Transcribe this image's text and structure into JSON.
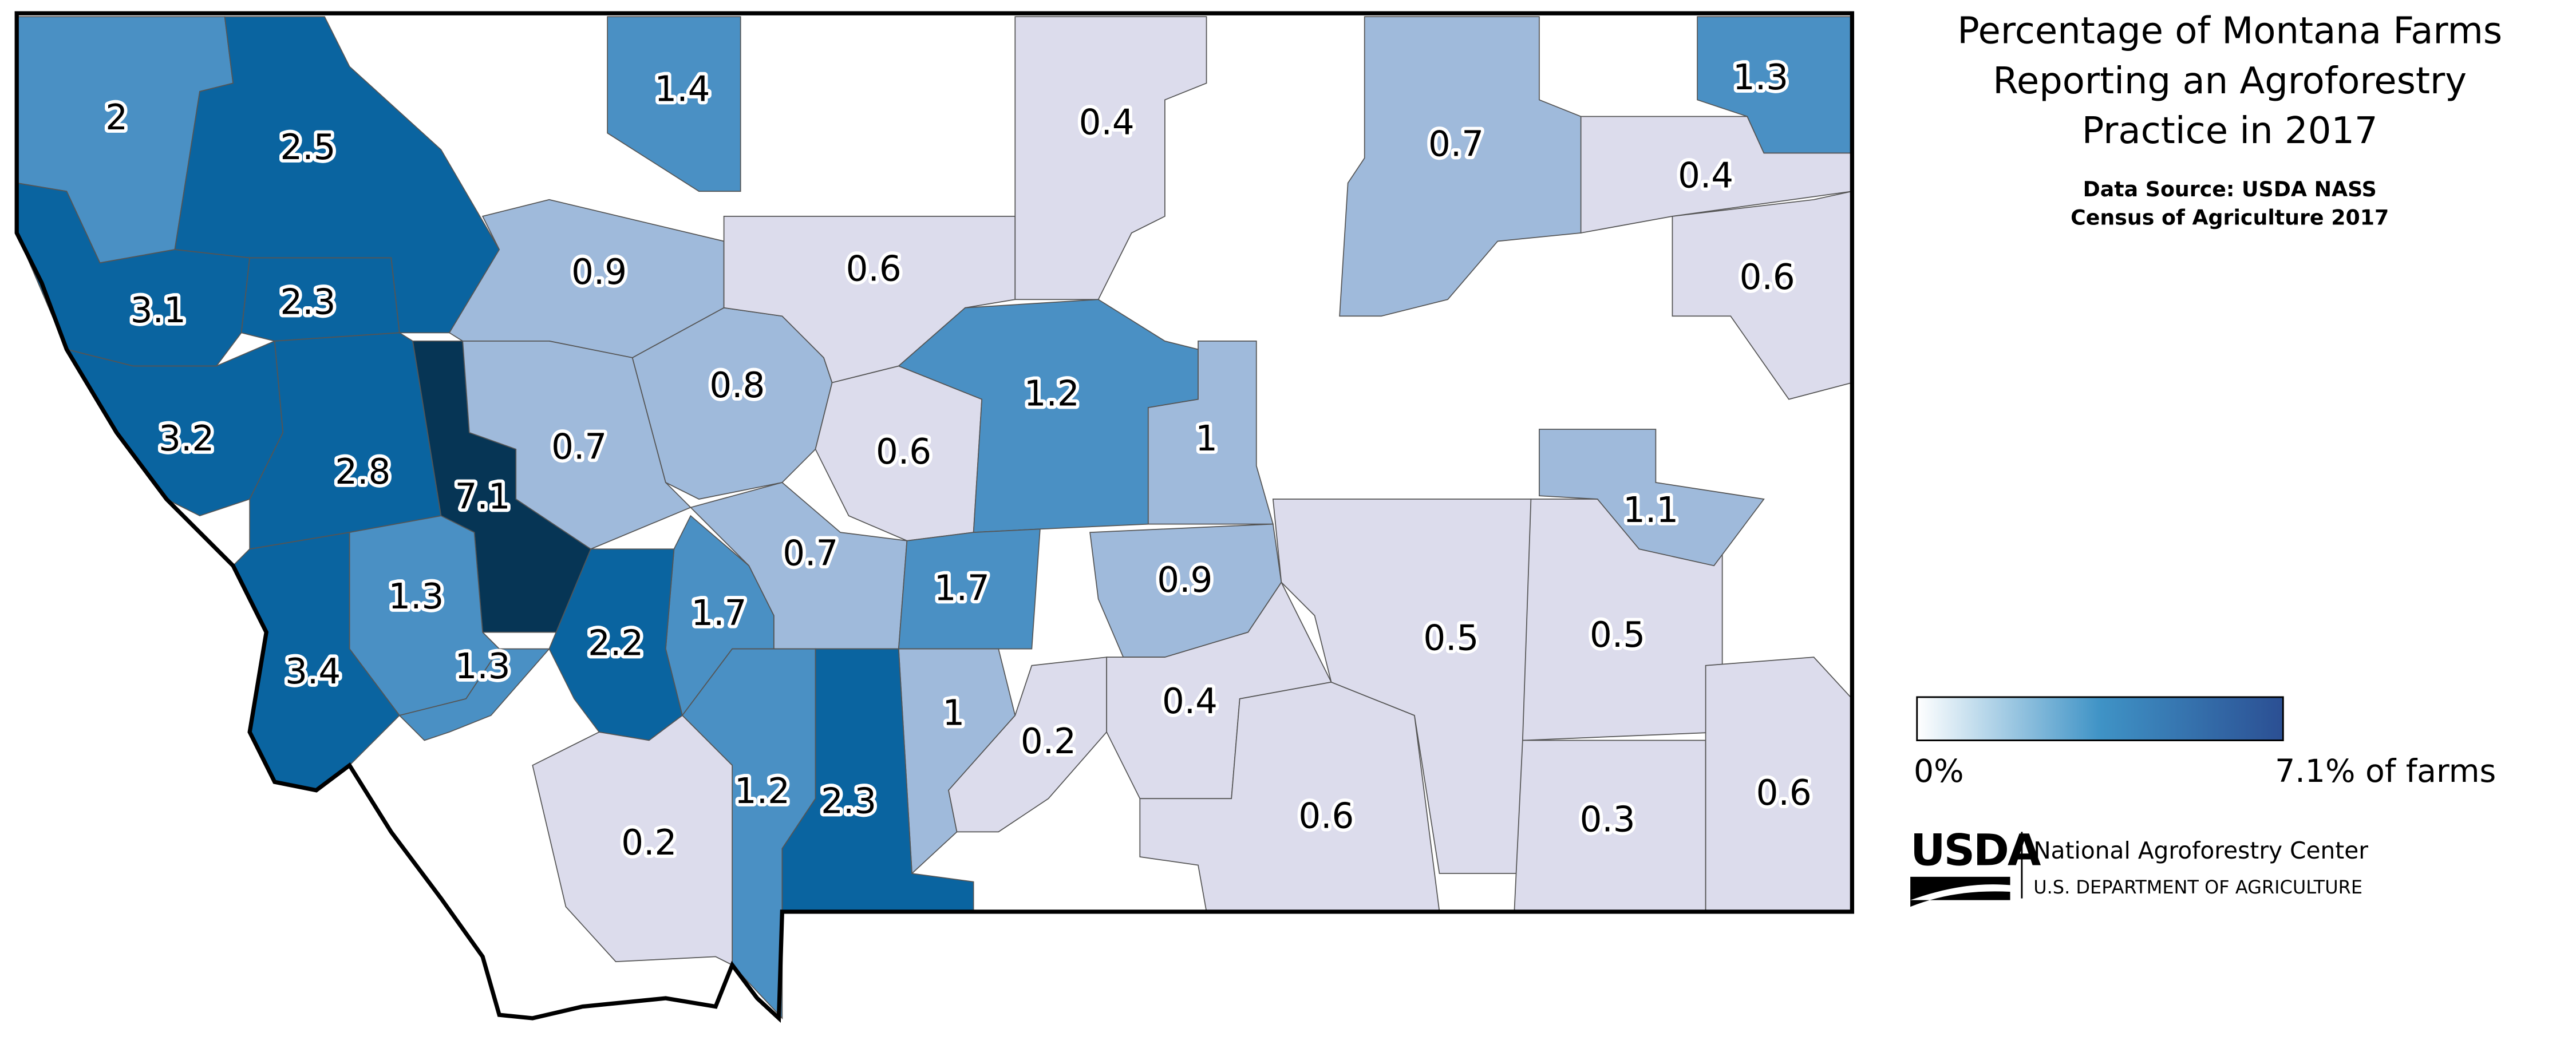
{
  "title_lines": [
    "Percentage of Montana Farms",
    "Reporting an Agroforestry",
    "Practice in 2017"
  ],
  "source_lines": [
    "Data Source: USDA NASS",
    "Census of Agriculture 2017"
  ],
  "legend": {
    "min_label": "0%",
    "max_label": "7.1% of farms",
    "colors": [
      "#ffffff",
      "#3f93c6",
      "#2b4f93"
    ]
  },
  "logo": {
    "mark": "USDA",
    "name": "National Agroforestry Center",
    "department": "U.S. DEPARTMENT OF AGRICULTURE"
  },
  "regions": [
    {
      "value": 2,
      "color": "#4a90c4"
    },
    {
      "value": 2.5,
      "color": "#0a64a0"
    },
    {
      "value": 3.1,
      "color": "#0a64a0"
    },
    {
      "value": 2.3,
      "color": "#0a64a0"
    },
    {
      "value": 3.2,
      "color": "#0a64a0"
    },
    {
      "value": 2.8,
      "color": "#0a64a0"
    },
    {
      "value": 7.1,
      "color": "#063555"
    },
    {
      "value": 1.3,
      "color": "#4a90c4"
    },
    {
      "value": 3.4,
      "color": "#0a64a0"
    },
    {
      "value": 1.3,
      "color": "#4a90c4"
    },
    {
      "value": 0.9,
      "color": "#9fbadb"
    },
    {
      "value": 0.7,
      "color": "#9fbadb"
    },
    {
      "value": 0.8,
      "color": "#9fbadb"
    },
    {
      "value": 0.6,
      "color": "#dcdcec"
    },
    {
      "value": 0.4,
      "color": "#dcdcec"
    },
    {
      "value": 1.4,
      "color": "#4a90c4"
    },
    {
      "value": 0.6,
      "color": "#dcdcec"
    },
    {
      "value": 1.2,
      "color": "#4a90c4"
    },
    {
      "value": 1,
      "color": "#9fbadb"
    },
    {
      "value": 0.7,
      "color": "#9fbadb"
    },
    {
      "value": 1.7,
      "color": "#4a90c4"
    },
    {
      "value": 2.2,
      "color": "#0a64a0"
    },
    {
      "value": 1.7,
      "color": "#4a90c4"
    },
    {
      "value": 0.9,
      "color": "#9fbadb"
    },
    {
      "value": 1,
      "color": "#9fbadb"
    },
    {
      "value": 0.2,
      "color": "#dcdcec"
    },
    {
      "value": 0.4,
      "color": "#dcdcec"
    },
    {
      "value": 2.3,
      "color": "#0a64a0"
    },
    {
      "value": 1.2,
      "color": "#4a90c4"
    },
    {
      "value": 0.2,
      "color": "#dcdcec"
    },
    {
      "value": 0.6,
      "color": "#dcdcec"
    },
    {
      "value": 0.5,
      "color": "#dcdcec"
    },
    {
      "value": 0.5,
      "color": "#dcdcec"
    },
    {
      "value": 1.1,
      "color": "#9fbadb"
    },
    {
      "value": 0.3,
      "color": "#dcdcec"
    },
    {
      "value": 0.6,
      "color": "#dcdcec"
    },
    {
      "value": 0.6,
      "color": "#dcdcec"
    },
    {
      "value": 0.4,
      "color": "#dcdcec"
    },
    {
      "value": 0.7,
      "color": "#9fbadb"
    },
    {
      "value": 1.3,
      "color": "#4a90c4"
    }
  ]
}
